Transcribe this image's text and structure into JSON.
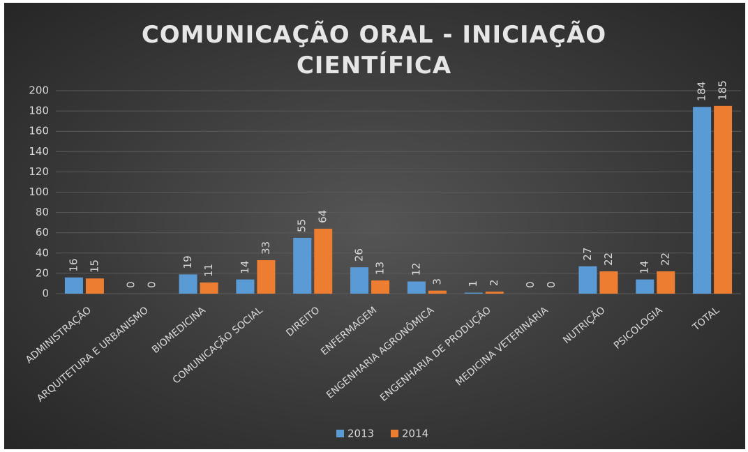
{
  "chart_data": {
    "type": "bar",
    "title": "COMUNICAÇÃO ORAL - INICIAÇÃO CIENTÍFICA",
    "categories": [
      "ADMINISTRAÇÃO",
      "ARQUITETURA E URBANISMO",
      "BIOMEDICINA",
      "COMUNICAÇÃO SOCIAL",
      "DIREITO",
      "ENFERMAGEM",
      "ENGENHARIA AGRONÔMICA",
      "ENGENHARIA DE PRODUÇÃO",
      "MEDICINA VETERINÁRIA",
      "NUTRIÇÃO",
      "PSICOLOGIA",
      "TOTAL"
    ],
    "series": [
      {
        "name": "2013",
        "color": "#5b9bd5",
        "values": [
          16,
          0,
          19,
          14,
          55,
          26,
          12,
          1,
          0,
          27,
          14,
          184
        ]
      },
      {
        "name": "2014",
        "color": "#ed7d31",
        "values": [
          15,
          0,
          11,
          33,
          64,
          13,
          3,
          2,
          0,
          22,
          22,
          185
        ]
      }
    ],
    "ylim": [
      0,
      200
    ],
    "yticks": [
      0,
      20,
      40,
      60,
      80,
      100,
      120,
      140,
      160,
      180,
      200
    ],
    "grid": true,
    "legend": "bottom"
  }
}
